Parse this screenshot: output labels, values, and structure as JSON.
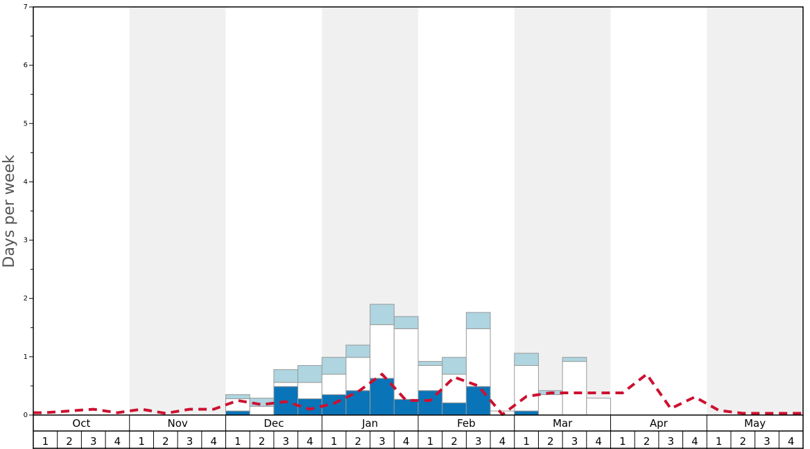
{
  "chart_data": {
    "type": "bar",
    "ylabel": "Days per week",
    "ylim": [
      0,
      7
    ],
    "yticks": [
      "0",
      "1",
      "2",
      "3",
      "4",
      "5",
      "6",
      "7"
    ],
    "months": [
      "Oct",
      "Nov",
      "Dec",
      "Jan",
      "Feb",
      "Mar",
      "Apr",
      "May"
    ],
    "weeks": [
      "1",
      "2",
      "3",
      "4"
    ],
    "colors": {
      "dark": "#0a74b8",
      "light": "#aed5e0",
      "white": "#ffffff",
      "line": "#cc1130",
      "shade": "#f0f0f0",
      "bar_border": "#999999"
    },
    "series": [
      {
        "values": [
          0,
          0,
          0,
          0,
          0,
          0,
          0,
          0,
          0.07,
          0,
          0.49,
          0.28,
          0.35,
          0.42,
          0.63,
          0.27,
          0.42,
          0.21,
          0.49,
          0,
          0.07,
          0,
          0,
          0,
          0,
          0,
          0,
          0,
          0,
          0,
          0,
          0
        ]
      },
      {
        "values": [
          0,
          0,
          0,
          0,
          0,
          0,
          0,
          0,
          0.21,
          0.15,
          0.07,
          0.28,
          0.35,
          0.57,
          0.92,
          1.21,
          0.43,
          0.49,
          0.99,
          0.07,
          0.78,
          0.35,
          0.92,
          0.29,
          0,
          0,
          0,
          0,
          0,
          0,
          0,
          0
        ]
      },
      {
        "values": [
          0,
          0,
          0,
          0,
          0,
          0,
          0,
          0,
          0.07,
          0.14,
          0.22,
          0.29,
          0.29,
          0.21,
          0.35,
          0.21,
          0.07,
          0.29,
          0.28,
          0,
          0.21,
          0.07,
          0.07,
          0,
          0,
          0,
          0,
          0,
          0,
          0,
          0,
          0
        ]
      },
      {
        "values": [
          0.04,
          0.07,
          0.1,
          0.04,
          0.1,
          0.03,
          0.1,
          0.1,
          0.25,
          0.18,
          0.23,
          0.1,
          0.2,
          0.4,
          0.7,
          0.25,
          0.25,
          0.65,
          0.5,
          0.01,
          0.32,
          0.38,
          0.38,
          0.38,
          0.38,
          0.7,
          0.11,
          0.31,
          0.08,
          0.03,
          0.03,
          0.03
        ]
      }
    ]
  }
}
